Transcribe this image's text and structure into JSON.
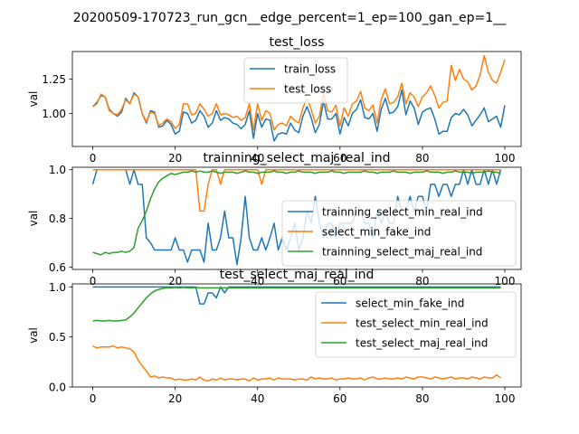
{
  "figure_title": "20200509-170723_run_gcn__edge_percent=1_ep=100_gan_ep=1__",
  "colors": {
    "blue": "#1f77b4",
    "orange": "#ff7f0e",
    "green": "#2ca02c"
  },
  "chart_data": [
    {
      "type": "line",
      "title": "test_loss",
      "xlabel": "",
      "ylabel": "val",
      "xlim": [
        -4.95,
        103.95
      ],
      "ylim": [
        0.76,
        1.45
      ],
      "xticks": [
        0,
        20,
        40,
        60,
        80,
        100
      ],
      "yticks": [
        1.0,
        1.25
      ],
      "ytick_labels": [
        "1.00",
        "1.25"
      ],
      "legend_position": "upper-center",
      "series": [
        {
          "name": "train_loss",
          "color": "#1f77b4",
          "values": [
            1.05,
            1.08,
            1.13,
            1.12,
            1.03,
            1.0,
            0.98,
            1.01,
            1.11,
            1.07,
            1.15,
            1.12,
            1.0,
            0.93,
            1.02,
            1.01,
            0.9,
            0.91,
            0.95,
            0.92,
            0.85,
            0.87,
            1.01,
            1.0,
            0.93,
            0.95,
            1.02,
            0.98,
            0.9,
            0.93,
            1.02,
            0.95,
            0.97,
            0.96,
            0.93,
            0.92,
            0.89,
            0.92,
            1.02,
            0.82,
            1.0,
            0.9,
            0.96,
            0.95,
            0.8,
            0.85,
            0.86,
            0.85,
            0.93,
            0.88,
            0.86,
            0.98,
            1.05,
            0.97,
            0.86,
            0.92,
            1.09,
            0.96,
            0.96,
            1.0,
            0.85,
            0.97,
            0.91,
            1.0,
            1.03,
            1.1,
            0.97,
            0.96,
            1.0,
            0.87,
            1.03,
            1.11,
            1.0,
            1.01,
            1.05,
            1.17,
            0.99,
            1.09,
            1.04,
            0.92,
            1.01,
            1.03,
            1.04,
            0.96,
            0.85,
            0.87,
            0.87,
            0.97,
            1.0,
            0.99,
            1.03,
            0.99,
            0.91,
            0.95,
            0.99,
            1.04,
            0.94,
            0.96,
            0.98,
            0.9,
            1.06
          ]
        },
        {
          "name": "test_loss",
          "color": "#ff7f0e",
          "values": [
            1.05,
            1.07,
            1.14,
            1.12,
            1.02,
            1.0,
            0.99,
            1.03,
            1.1,
            1.07,
            1.14,
            1.12,
            1.0,
            0.94,
            1.01,
            1.0,
            0.91,
            0.93,
            0.96,
            0.94,
            0.89,
            0.92,
            1.07,
            1.07,
            0.99,
            1.0,
            1.07,
            1.03,
            0.98,
            1.0,
            1.07,
            0.99,
            1.0,
            0.99,
            0.97,
            0.98,
            0.95,
            0.97,
            1.07,
            0.88,
            1.07,
            0.95,
            1.02,
            1.0,
            0.88,
            0.92,
            0.93,
            0.91,
            0.98,
            0.95,
            0.93,
            1.04,
            1.11,
            1.03,
            0.93,
            0.98,
            1.15,
            1.02,
            1.01,
            1.06,
            0.91,
            1.04,
            0.98,
            1.07,
            1.09,
            1.16,
            1.04,
            1.02,
            1.06,
            0.93,
            1.1,
            1.18,
            1.07,
            1.08,
            1.12,
            1.22,
            1.07,
            1.15,
            1.12,
            1.05,
            1.12,
            1.15,
            1.2,
            1.13,
            1.04,
            1.08,
            1.09,
            1.35,
            1.24,
            1.32,
            1.25,
            1.23,
            1.17,
            1.2,
            1.28,
            1.42,
            1.3,
            1.24,
            1.22,
            1.3,
            1.39
          ]
        }
      ]
    },
    {
      "type": "line",
      "title": "trainning_select_maj_real_ind",
      "xlabel": "",
      "ylabel": "val",
      "xlim": [
        -4.95,
        103.95
      ],
      "ylim": [
        0.59,
        1.01
      ],
      "xticks": [
        0,
        20,
        40,
        60,
        80,
        100
      ],
      "yticks": [
        0.6,
        0.8,
        1.0
      ],
      "ytick_labels": [
        "0.6",
        "0.8",
        "1.0"
      ],
      "legend_position": "lower-right",
      "series": [
        {
          "name": "trainning_select_min_real_ind",
          "color": "#1f77b4",
          "values": [
            0.94,
            1.0,
            1.0,
            1.0,
            1.0,
            1.0,
            1.0,
            1.0,
            1.0,
            0.94,
            1.0,
            0.94,
            0.94,
            0.72,
            0.7,
            0.67,
            0.67,
            0.67,
            0.67,
            0.67,
            0.72,
            0.67,
            0.67,
            0.62,
            0.67,
            0.67,
            0.67,
            0.62,
            0.78,
            0.67,
            0.67,
            0.72,
            0.83,
            0.72,
            0.72,
            0.61,
            0.72,
            0.89,
            0.72,
            0.67,
            0.67,
            0.72,
            0.67,
            0.72,
            0.78,
            0.67,
            0.72,
            0.67,
            0.72,
            0.78,
            0.67,
            0.72,
            0.83,
            0.78,
            0.89,
            0.78,
            0.72,
            0.78,
            0.78,
            0.72,
            0.78,
            0.78,
            0.78,
            0.78,
            0.83,
            0.83,
            0.78,
            0.78,
            0.72,
            0.83,
            0.78,
            0.83,
            0.78,
            0.78,
            0.89,
            0.83,
            0.83,
            0.89,
            0.83,
            0.89,
            0.89,
            0.83,
            0.94,
            0.94,
            0.89,
            0.94,
            0.94,
            0.89,
            0.94,
            0.94,
            1.0,
            0.94,
            1.0,
            0.94,
            0.94,
            1.0,
            0.94,
            1.0,
            0.94,
            1.0
          ]
        },
        {
          "name": "select_min_fake_ind",
          "color": "#ff7f0e",
          "values": [
            1.0,
            1.0,
            1.0,
            1.0,
            1.0,
            1.0,
            1.0,
            1.0,
            1.0,
            1.0,
            1.0,
            1.0,
            1.0,
            1.0,
            1.0,
            1.0,
            1.0,
            1.0,
            1.0,
            1.0,
            1.0,
            1.0,
            1.0,
            1.0,
            1.0,
            1.0,
            0.83,
            0.83,
            0.94,
            1.0,
            1.0,
            0.94,
            1.0,
            1.0,
            1.0,
            1.0,
            1.0,
            1.0,
            1.0,
            1.0,
            1.0,
            0.94,
            1.0,
            1.0,
            1.0,
            1.0,
            1.0,
            1.0,
            1.0,
            1.0,
            1.0,
            1.0,
            1.0,
            1.0,
            1.0,
            1.0,
            1.0,
            1.0,
            1.0,
            1.0,
            1.0,
            1.0,
            1.0,
            1.0,
            1.0,
            1.0,
            1.0,
            1.0,
            1.0,
            1.0,
            1.0,
            1.0,
            1.0,
            1.0,
            1.0,
            1.0,
            1.0,
            1.0,
            1.0,
            1.0,
            1.0,
            1.0,
            1.0,
            1.0,
            1.0,
            1.0,
            1.0,
            1.0,
            1.0,
            1.0,
            1.0,
            1.0,
            1.0,
            1.0,
            1.0,
            1.0,
            1.0,
            1.0,
            1.0,
            1.0
          ]
        },
        {
          "name": "trainning_select_maj_real_ind",
          "color": "#2ca02c",
          "values": [
            0.66,
            0.655,
            0.65,
            0.66,
            0.655,
            0.66,
            0.66,
            0.665,
            0.66,
            0.665,
            0.68,
            0.76,
            0.79,
            0.83,
            0.88,
            0.92,
            0.95,
            0.965,
            0.975,
            0.985,
            0.98,
            0.985,
            0.99,
            0.99,
            0.995,
            0.99,
            0.995,
            0.99,
            0.99,
            0.995,
            0.99,
            0.985,
            0.99,
            0.99,
            0.99,
            0.985,
            0.99,
            0.995,
            0.99,
            0.99,
            0.985,
            0.99,
            0.99,
            0.99,
            0.995,
            0.99,
            0.99,
            0.985,
            0.99,
            0.99,
            0.995,
            0.99,
            0.99,
            0.99,
            0.985,
            0.99,
            0.99,
            0.99,
            0.995,
            0.99,
            0.99,
            0.985,
            0.99,
            0.99,
            0.99,
            0.99,
            0.995,
            0.99,
            0.99,
            0.985,
            0.99,
            0.99,
            0.99,
            0.995,
            0.99,
            0.99,
            0.99,
            0.985,
            0.99,
            0.99,
            0.99,
            0.995,
            0.99,
            0.99,
            0.99,
            0.985,
            0.99,
            0.99,
            0.995,
            0.99,
            0.99,
            0.99,
            0.985,
            0.99,
            0.99,
            0.99,
            0.995,
            0.99,
            0.99,
            0.985
          ]
        }
      ]
    },
    {
      "type": "line",
      "title": "test_select_maj_real_ind",
      "xlabel": "",
      "ylabel": "val",
      "xlim": [
        -4.95,
        103.95
      ],
      "ylim": [
        0.0,
        1.03
      ],
      "xticks": [
        0,
        20,
        40,
        60,
        80,
        100
      ],
      "yticks": [
        0.0,
        0.5,
        1.0
      ],
      "ytick_labels": [
        "0.0",
        "0.5",
        "1.0"
      ],
      "legend_position": "upper-right",
      "series": [
        {
          "name": "select_min_fake_ind",
          "color": "#1f77b4",
          "values": [
            1.0,
            1.0,
            1.0,
            1.0,
            1.0,
            1.0,
            1.0,
            1.0,
            1.0,
            1.0,
            1.0,
            1.0,
            1.0,
            1.0,
            1.0,
            1.0,
            1.0,
            1.0,
            1.0,
            1.0,
            1.0,
            1.0,
            1.0,
            1.0,
            1.0,
            1.0,
            0.83,
            0.83,
            0.94,
            0.94,
            0.89,
            1.0,
            0.94,
            1.0,
            1.0,
            1.0,
            1.0,
            1.0,
            1.0,
            1.0,
            1.0,
            1.0,
            1.0,
            1.0,
            1.0,
            1.0,
            1.0,
            1.0,
            1.0,
            1.0,
            1.0,
            1.0,
            1.0,
            1.0,
            1.0,
            1.0,
            1.0,
            1.0,
            1.0,
            1.0,
            1.0,
            1.0,
            1.0,
            1.0,
            1.0,
            1.0,
            1.0,
            1.0,
            1.0,
            1.0,
            1.0,
            1.0,
            1.0,
            1.0,
            1.0,
            1.0,
            1.0,
            1.0,
            1.0,
            1.0,
            1.0,
            1.0,
            1.0,
            1.0,
            1.0,
            1.0,
            1.0,
            1.0,
            1.0,
            1.0,
            1.0,
            1.0,
            1.0,
            1.0,
            1.0,
            1.0,
            1.0,
            1.0,
            1.0,
            1.0
          ]
        },
        {
          "name": "test_select_min_real_ind",
          "color": "#ff7f0e",
          "values": [
            0.41,
            0.39,
            0.4,
            0.4,
            0.4,
            0.41,
            0.39,
            0.4,
            0.39,
            0.38,
            0.35,
            0.27,
            0.21,
            0.16,
            0.1,
            0.11,
            0.09,
            0.1,
            0.09,
            0.09,
            0.07,
            0.08,
            0.07,
            0.07,
            0.08,
            0.07,
            0.1,
            0.07,
            0.06,
            0.08,
            0.07,
            0.09,
            0.07,
            0.08,
            0.08,
            0.07,
            0.08,
            0.08,
            0.06,
            0.09,
            0.07,
            0.08,
            0.08,
            0.09,
            0.07,
            0.09,
            0.08,
            0.08,
            0.08,
            0.07,
            0.08,
            0.08,
            0.07,
            0.1,
            0.08,
            0.09,
            0.08,
            0.08,
            0.09,
            0.07,
            0.08,
            0.08,
            0.09,
            0.08,
            0.08,
            0.09,
            0.07,
            0.09,
            0.1,
            0.08,
            0.08,
            0.09,
            0.08,
            0.08,
            0.09,
            0.08,
            0.1,
            0.09,
            0.08,
            0.1,
            0.1,
            0.09,
            0.08,
            0.1,
            0.09,
            0.08,
            0.09,
            0.1,
            0.08,
            0.09,
            0.09,
            0.08,
            0.1,
            0.09,
            0.08,
            0.1,
            0.09,
            0.09,
            0.12,
            0.09
          ]
        },
        {
          "name": "test_select_maj_real_ind",
          "color": "#2ca02c",
          "values": [
            0.66,
            0.665,
            0.66,
            0.66,
            0.665,
            0.66,
            0.66,
            0.665,
            0.67,
            0.7,
            0.74,
            0.79,
            0.84,
            0.89,
            0.93,
            0.96,
            0.975,
            0.985,
            0.99,
            0.99,
            0.995,
            0.99,
            0.995,
            0.99,
            0.99,
            0.995,
            0.99,
            0.99,
            0.99,
            0.99,
            0.99,
            0.99,
            0.99,
            0.99,
            0.99,
            0.99,
            0.99,
            0.99,
            0.99,
            0.99,
            0.99,
            0.99,
            0.99,
            0.99,
            0.99,
            0.99,
            0.99,
            0.99,
            0.99,
            0.99,
            0.99,
            0.99,
            0.99,
            0.99,
            0.99,
            0.99,
            0.99,
            0.99,
            0.99,
            0.99,
            0.99,
            0.99,
            0.99,
            0.99,
            0.99,
            0.99,
            0.99,
            0.99,
            0.99,
            0.99,
            0.99,
            0.99,
            0.99,
            0.99,
            0.99,
            0.99,
            0.99,
            0.99,
            0.99,
            0.99,
            0.99,
            0.99,
            0.99,
            0.99,
            0.99,
            0.99,
            0.99,
            0.99,
            0.99,
            0.99,
            0.99,
            0.99,
            0.99,
            0.99,
            0.99,
            0.99,
            0.99,
            0.99,
            0.99,
            0.99
          ]
        }
      ]
    }
  ]
}
